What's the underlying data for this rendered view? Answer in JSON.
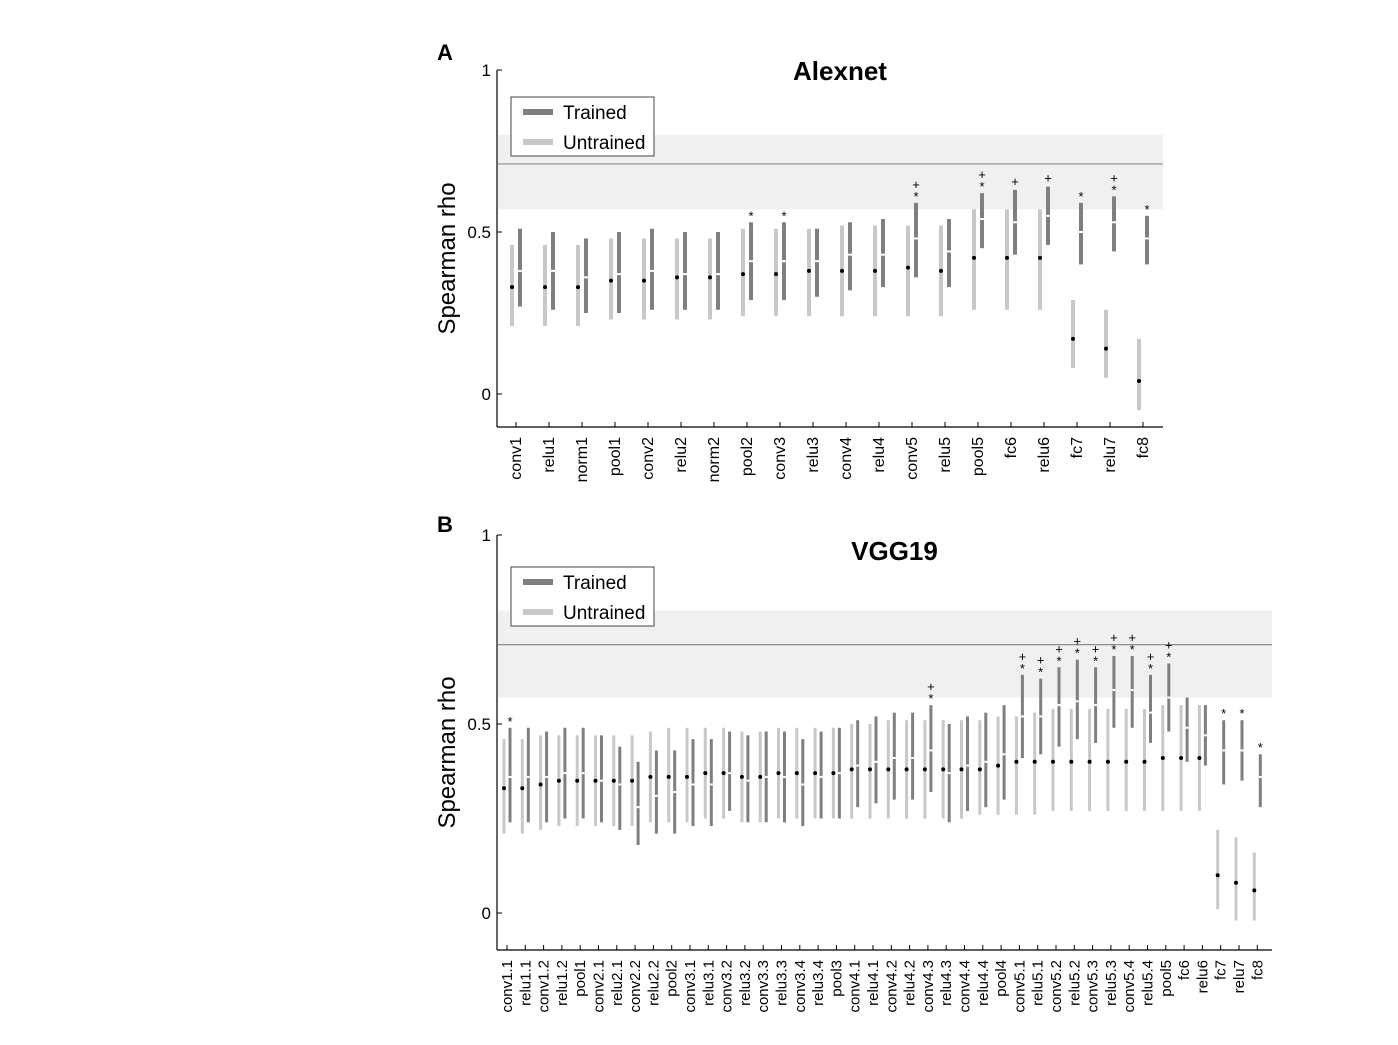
{
  "figure": {
    "panel_a_letter": "A",
    "panel_b_letter": "B"
  },
  "chart_data": [
    {
      "type": "errorbar",
      "title": "Alexnet",
      "xlabel": "",
      "ylabel": "Spearman rho",
      "ylim": [
        -0.1,
        1.0
      ],
      "yticks": [
        0,
        0.5,
        1
      ],
      "ytick_labels": [
        "0",
        "0.5",
        "1"
      ],
      "noise_ceiling": {
        "lower": 0.57,
        "upper": 0.8,
        "line": 0.71
      },
      "legend": {
        "position": "top-left",
        "entries": [
          "Trained",
          "Untrained"
        ]
      },
      "colors": {
        "trained": "#7f7f7f",
        "untrained": "#c8c8c8",
        "ceiling": "#f0f0f0",
        "ceiling_line": "#8c8c8c"
      },
      "categories": [
        "conv1",
        "relu1",
        "norm1",
        "pool1",
        "conv2",
        "relu2",
        "norm2",
        "pool2",
        "conv3",
        "relu3",
        "conv4",
        "relu4",
        "conv5",
        "relu5",
        "pool5",
        "fc6",
        "relu6",
        "fc7",
        "relu7",
        "fc8"
      ],
      "series": [
        {
          "name": "Untrained",
          "values": [
            0.33,
            0.33,
            0.33,
            0.35,
            0.35,
            0.36,
            0.36,
            0.37,
            0.37,
            0.38,
            0.38,
            0.38,
            0.39,
            0.38,
            0.42,
            0.42,
            0.42,
            0.17,
            0.14,
            0.04
          ],
          "lower": [
            0.21,
            0.21,
            0.21,
            0.23,
            0.23,
            0.23,
            0.23,
            0.24,
            0.24,
            0.24,
            0.24,
            0.24,
            0.24,
            0.24,
            0.26,
            0.26,
            0.26,
            0.08,
            0.05,
            -0.05
          ],
          "upper": [
            0.46,
            0.46,
            0.46,
            0.48,
            0.48,
            0.48,
            0.48,
            0.51,
            0.51,
            0.51,
            0.52,
            0.52,
            0.52,
            0.52,
            0.57,
            0.57,
            0.57,
            0.29,
            0.26,
            0.17
          ]
        },
        {
          "name": "Trained",
          "values": [
            0.38,
            0.38,
            0.36,
            0.37,
            0.38,
            0.37,
            0.37,
            0.41,
            0.41,
            0.41,
            0.43,
            0.43,
            0.48,
            0.44,
            0.54,
            0.53,
            0.55,
            0.5,
            0.53,
            0.48
          ],
          "lower": [
            0.27,
            0.26,
            0.25,
            0.25,
            0.26,
            0.26,
            0.26,
            0.29,
            0.29,
            0.3,
            0.32,
            0.33,
            0.36,
            0.33,
            0.45,
            0.43,
            0.46,
            0.4,
            0.44,
            0.4
          ],
          "upper": [
            0.51,
            0.5,
            0.48,
            0.5,
            0.51,
            0.5,
            0.5,
            0.53,
            0.53,
            0.51,
            0.53,
            0.54,
            0.59,
            0.54,
            0.62,
            0.63,
            0.64,
            0.59,
            0.61,
            0.55
          ]
        }
      ],
      "annotations": {
        "asterisk": [
          false,
          false,
          false,
          false,
          false,
          false,
          false,
          true,
          true,
          false,
          false,
          false,
          true,
          false,
          true,
          false,
          false,
          true,
          true,
          true
        ],
        "plus": [
          false,
          false,
          false,
          false,
          false,
          false,
          false,
          false,
          false,
          false,
          false,
          false,
          true,
          false,
          true,
          true,
          true,
          false,
          true,
          false
        ],
        "asterisk_symbol": "*",
        "plus_symbol": "+"
      }
    },
    {
      "type": "errorbar",
      "title": "VGG19",
      "xlabel": "",
      "ylabel": "Spearman rho",
      "ylim": [
        -0.1,
        1.0
      ],
      "yticks": [
        0,
        0.5,
        1
      ],
      "ytick_labels": [
        "0",
        "0.5",
        "1"
      ],
      "noise_ceiling": {
        "lower": 0.57,
        "upper": 0.8,
        "line": 0.71
      },
      "legend": {
        "position": "top-left",
        "entries": [
          "Trained",
          "Untrained"
        ]
      },
      "colors": {
        "trained": "#7f7f7f",
        "untrained": "#c8c8c8",
        "ceiling": "#f0f0f0",
        "ceiling_line": "#8c8c8c"
      },
      "categories": [
        "conv1.1",
        "relu1.1",
        "conv1.2",
        "relu1.2",
        "pool1",
        "conv2.1",
        "relu2.1",
        "conv2.2",
        "relu2.2",
        "pool2",
        "conv3.1",
        "relu3.1",
        "conv3.2",
        "relu3.2",
        "conv3.3",
        "relu3.3",
        "conv3.4",
        "relu3.4",
        "pool3",
        "conv4.1",
        "relu4.1",
        "conv4.2",
        "relu4.2",
        "conv4.3",
        "relu4.3",
        "conv4.4",
        "relu4.4",
        "pool4",
        "conv5.1",
        "relu5.1",
        "conv5.2",
        "relu5.2",
        "conv5.3",
        "relu5.3",
        "conv5.4",
        "relu5.4",
        "pool5",
        "fc6",
        "relu6",
        "fc7",
        "relu7",
        "fc8"
      ],
      "series": [
        {
          "name": "Untrained",
          "values": [
            0.33,
            0.33,
            0.34,
            0.35,
            0.35,
            0.35,
            0.35,
            0.35,
            0.36,
            0.36,
            0.36,
            0.37,
            0.37,
            0.36,
            0.36,
            0.37,
            0.37,
            0.37,
            0.37,
            0.38,
            0.38,
            0.38,
            0.38,
            0.38,
            0.38,
            0.38,
            0.38,
            0.39,
            0.4,
            0.4,
            0.4,
            0.4,
            0.4,
            0.4,
            0.4,
            0.4,
            0.41,
            0.41,
            0.41,
            0.1,
            0.08,
            0.06
          ],
          "lower": [
            0.21,
            0.21,
            0.22,
            0.23,
            0.23,
            0.23,
            0.23,
            0.23,
            0.24,
            0.24,
            0.24,
            0.25,
            0.25,
            0.24,
            0.24,
            0.25,
            0.25,
            0.25,
            0.25,
            0.25,
            0.25,
            0.25,
            0.25,
            0.25,
            0.25,
            0.25,
            0.26,
            0.26,
            0.26,
            0.26,
            0.27,
            0.27,
            0.27,
            0.27,
            0.27,
            0.27,
            0.27,
            0.27,
            0.27,
            0.01,
            -0.02,
            -0.02
          ],
          "upper": [
            0.46,
            0.46,
            0.47,
            0.47,
            0.47,
            0.47,
            0.47,
            0.47,
            0.48,
            0.49,
            0.49,
            0.49,
            0.49,
            0.48,
            0.48,
            0.49,
            0.49,
            0.49,
            0.49,
            0.5,
            0.5,
            0.51,
            0.51,
            0.51,
            0.51,
            0.51,
            0.51,
            0.52,
            0.52,
            0.53,
            0.54,
            0.54,
            0.54,
            0.54,
            0.54,
            0.54,
            0.55,
            0.55,
            0.55,
            0.22,
            0.2,
            0.16
          ]
        },
        {
          "name": "Trained",
          "values": [
            0.36,
            0.36,
            0.36,
            0.37,
            0.37,
            0.35,
            0.34,
            0.28,
            0.31,
            0.32,
            0.34,
            0.34,
            0.37,
            0.35,
            0.36,
            0.36,
            0.34,
            0.36,
            0.37,
            0.39,
            0.4,
            0.41,
            0.41,
            0.43,
            0.37,
            0.39,
            0.4,
            0.42,
            0.52,
            0.52,
            0.55,
            0.56,
            0.55,
            0.59,
            0.59,
            0.53,
            0.57,
            0.49,
            0.47,
            0.43,
            0.43,
            0.36
          ],
          "lower": [
            0.24,
            0.24,
            0.24,
            0.25,
            0.25,
            0.24,
            0.22,
            0.18,
            0.21,
            0.21,
            0.23,
            0.23,
            0.27,
            0.24,
            0.24,
            0.24,
            0.23,
            0.25,
            0.25,
            0.28,
            0.29,
            0.3,
            0.3,
            0.32,
            0.24,
            0.27,
            0.28,
            0.3,
            0.41,
            0.42,
            0.44,
            0.46,
            0.45,
            0.49,
            0.49,
            0.45,
            0.48,
            0.4,
            0.39,
            0.34,
            0.35,
            0.28
          ],
          "upper": [
            0.49,
            0.49,
            0.48,
            0.49,
            0.49,
            0.47,
            0.44,
            0.4,
            0.43,
            0.43,
            0.46,
            0.46,
            0.48,
            0.47,
            0.48,
            0.48,
            0.46,
            0.48,
            0.49,
            0.51,
            0.52,
            0.53,
            0.53,
            0.55,
            0.5,
            0.52,
            0.53,
            0.55,
            0.63,
            0.62,
            0.65,
            0.67,
            0.65,
            0.68,
            0.68,
            0.63,
            0.66,
            0.57,
            0.55,
            0.51,
            0.51,
            0.42
          ]
        }
      ],
      "annotations": {
        "asterisk": [
          true,
          false,
          false,
          false,
          false,
          false,
          false,
          false,
          false,
          false,
          false,
          false,
          false,
          false,
          false,
          false,
          false,
          false,
          false,
          false,
          false,
          false,
          false,
          true,
          false,
          false,
          false,
          false,
          true,
          true,
          true,
          true,
          true,
          true,
          true,
          true,
          true,
          false,
          false,
          true,
          true,
          true
        ],
        "plus": [
          false,
          false,
          false,
          false,
          false,
          false,
          false,
          false,
          false,
          false,
          false,
          false,
          false,
          false,
          false,
          false,
          false,
          false,
          false,
          false,
          false,
          false,
          false,
          true,
          false,
          false,
          false,
          false,
          true,
          true,
          true,
          true,
          true,
          true,
          true,
          true,
          true,
          false,
          false,
          false,
          false,
          false
        ],
        "asterisk_symbol": "*",
        "plus_symbol": "+"
      }
    }
  ]
}
